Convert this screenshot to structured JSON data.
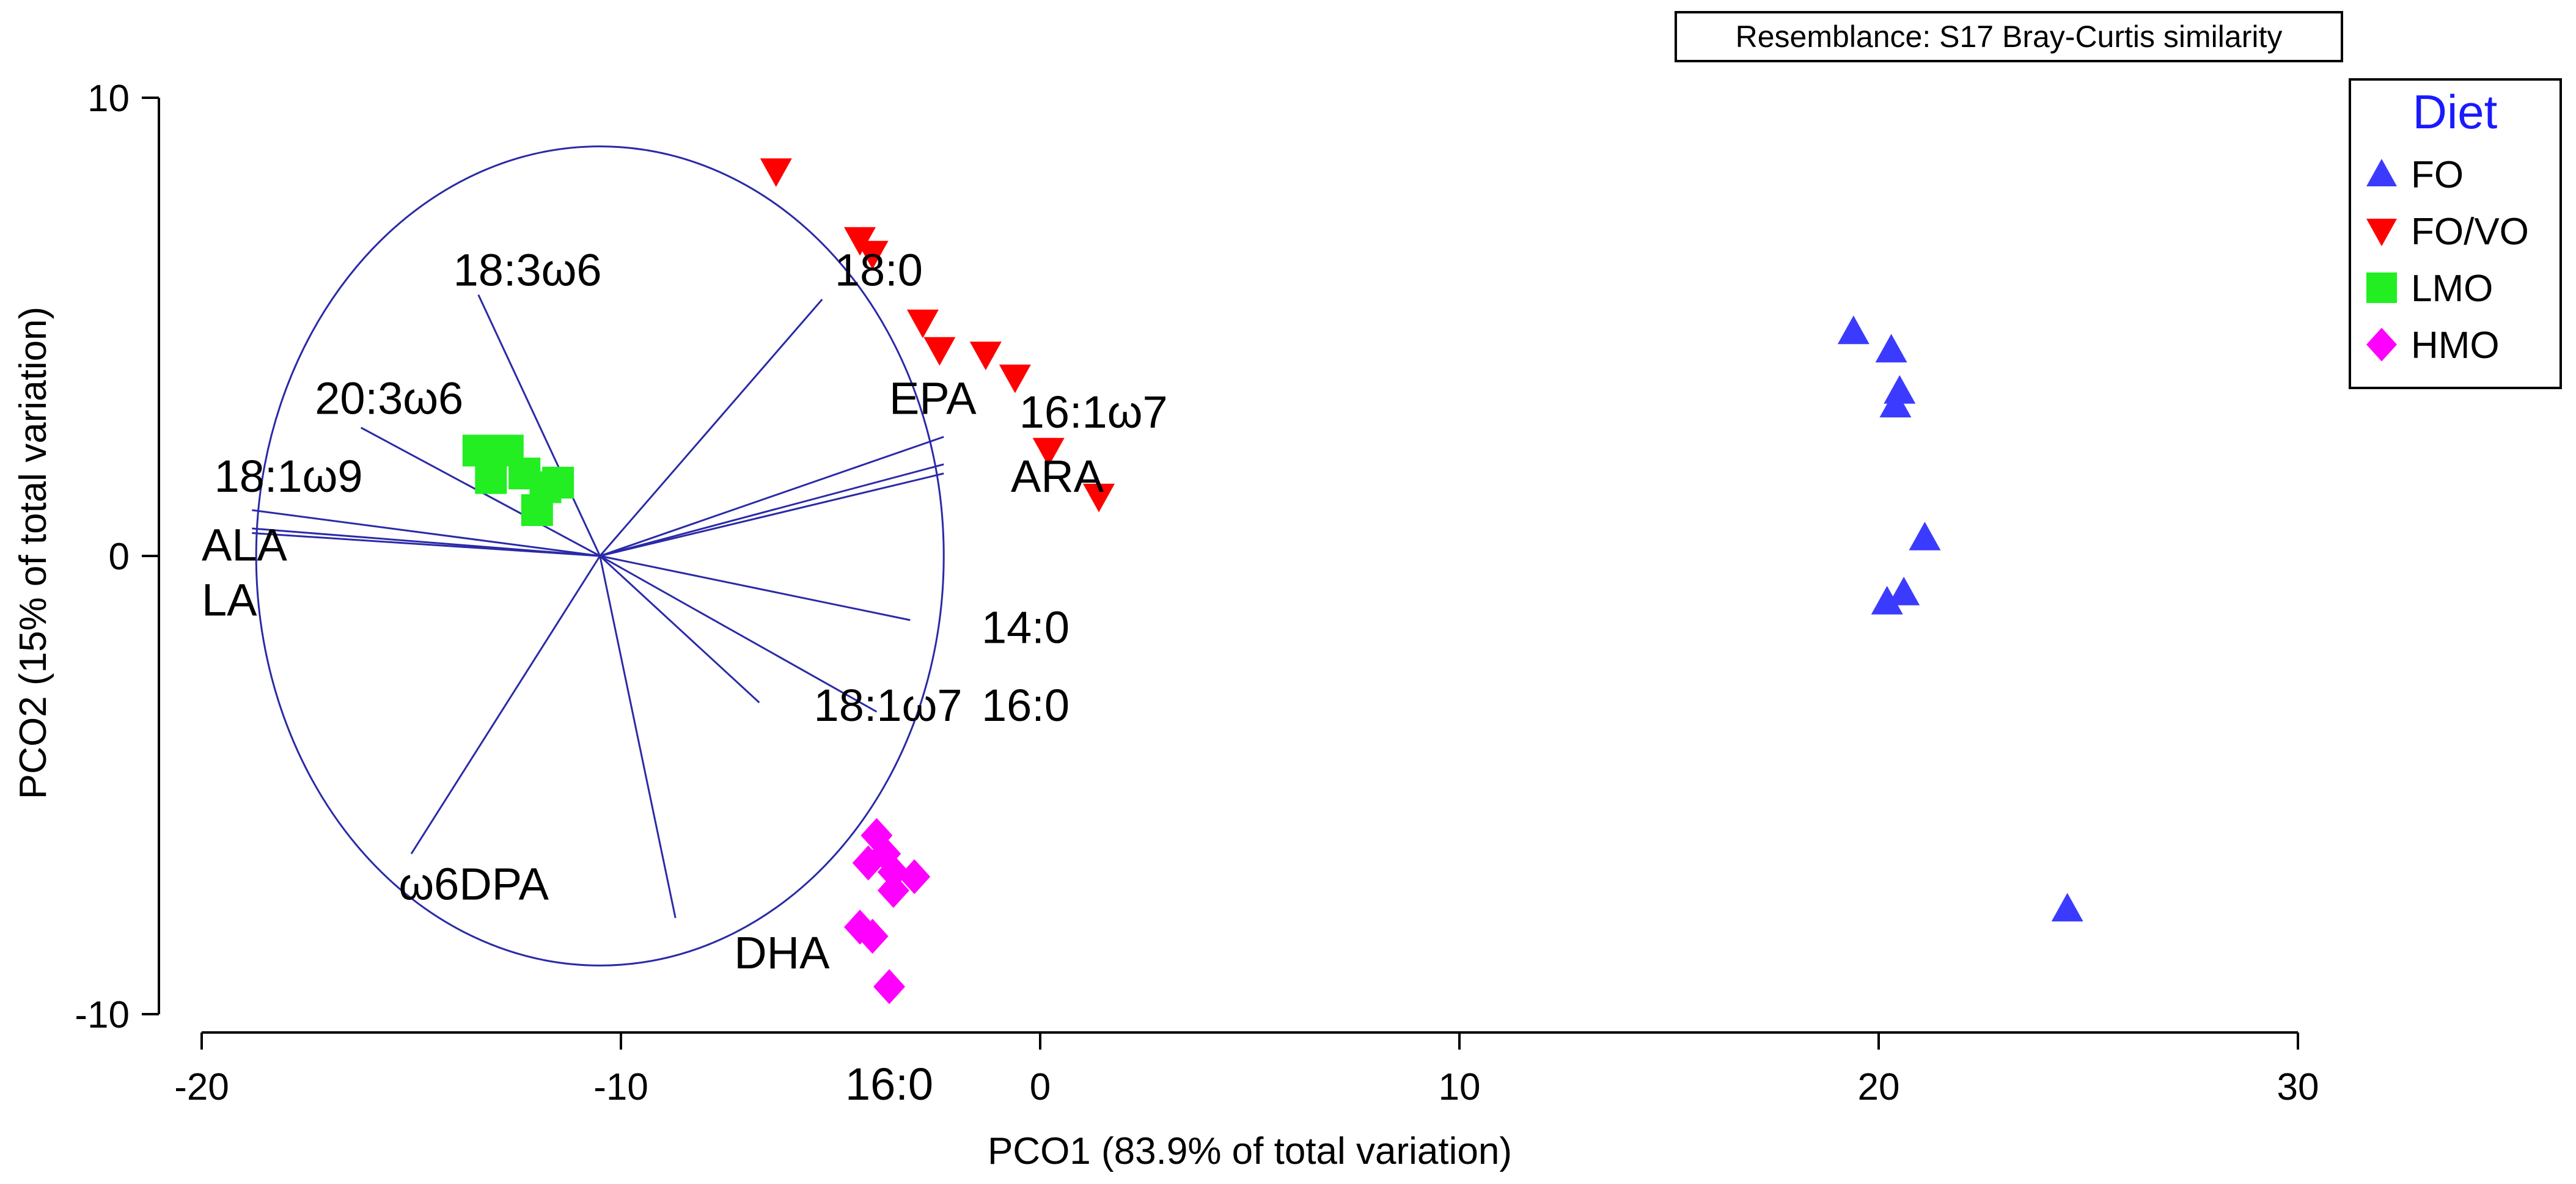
{
  "chart_data": {
    "type": "scatter",
    "title": "",
    "resemblance_note": "Resemblance: S17 Bray-Curtis similarity",
    "xlabel": "PCO1 (83.9% of total variation)",
    "ylabel": "PCO2 (15% of total variation)",
    "xlim": [
      -20,
      30
    ],
    "ylim": [
      -10,
      10
    ],
    "x_ticks": [
      -20,
      -10,
      0,
      10,
      20,
      30
    ],
    "x_tick_labels": [
      "-20",
      "-10",
      "0",
      "10",
      "20",
      "30"
    ],
    "y_ticks": [
      -10,
      0,
      10
    ],
    "y_tick_labels": [
      "-10",
      "0",
      "10"
    ],
    "stray_x_label": {
      "text": "16:0",
      "x": -3.6
    },
    "legend": {
      "title": "Diet",
      "position": "top-right",
      "entries": [
        {
          "label": "FO",
          "marker": "triangle-up",
          "color": "#3b3bff"
        },
        {
          "label": "FO/VO",
          "marker": "triangle-down",
          "color": "#ff0000"
        },
        {
          "label": "LMO",
          "marker": "square",
          "color": "#22ee22"
        },
        {
          "label": "HMO",
          "marker": "diamond",
          "color": "#ff00ff"
        }
      ]
    },
    "series": [
      {
        "name": "FO",
        "marker": "triangle-up",
        "color": "#3b3bff",
        "points": [
          [
            19.4,
            4.9
          ],
          [
            20.3,
            4.5
          ],
          [
            20.5,
            3.6
          ],
          [
            20.4,
            3.3
          ],
          [
            21.1,
            0.4
          ],
          [
            20.6,
            -0.8
          ],
          [
            20.2,
            -1.0
          ],
          [
            24.5,
            -7.7
          ]
        ]
      },
      {
        "name": "FO/VO",
        "marker": "triangle-down",
        "color": "#ff0000",
        "points": [
          [
            -6.3,
            8.4
          ],
          [
            -4.3,
            6.9
          ],
          [
            -4.0,
            6.6
          ],
          [
            -2.8,
            5.1
          ],
          [
            -2.4,
            4.5
          ],
          [
            -1.3,
            4.4
          ],
          [
            -0.6,
            3.9
          ],
          [
            0.2,
            2.3
          ],
          [
            1.4,
            1.3
          ]
        ]
      },
      {
        "name": "LMO",
        "marker": "square",
        "color": "#22ee22",
        "points": [
          [
            -13.4,
            2.3
          ],
          [
            -12.7,
            2.3
          ],
          [
            -13.1,
            1.7
          ],
          [
            -12.3,
            1.8
          ],
          [
            -11.8,
            1.5
          ],
          [
            -11.5,
            1.6
          ],
          [
            -12.0,
            1.0
          ]
        ]
      },
      {
        "name": "HMO",
        "marker": "diamond",
        "color": "#ff00ff",
        "points": [
          [
            -3.9,
            -6.1
          ],
          [
            -3.7,
            -6.5
          ],
          [
            -4.1,
            -6.7
          ],
          [
            -3.5,
            -6.9
          ],
          [
            -3.0,
            -7.0
          ],
          [
            -3.5,
            -7.3
          ],
          [
            -4.3,
            -8.1
          ],
          [
            -4.0,
            -8.3
          ],
          [
            -3.6,
            -9.4
          ]
        ]
      }
    ],
    "circle": {
      "center": [
        -10.5,
        0.0
      ],
      "radius": 8.2
    },
    "vectors": [
      {
        "label": "18:3ω6",
        "end": [
          -13.4,
          5.7
        ],
        "label_at": [
          -14.0,
          5.9
        ]
      },
      {
        "label": "18:0",
        "end": [
          -5.2,
          5.6
        ],
        "label_at": [
          -4.9,
          5.9
        ]
      },
      {
        "label": "20:3ω6",
        "end": [
          -16.2,
          2.8
        ],
        "label_at": [
          -17.3,
          3.1
        ]
      },
      {
        "label": "EPA",
        "end": [
          -2.3,
          2.6
        ],
        "label_at": [
          -3.6,
          3.1
        ]
      },
      {
        "label": "16:1ω7",
        "end": [
          -2.3,
          2.0
        ],
        "label_at": [
          -0.5,
          2.8
        ]
      },
      {
        "label": "ARA",
        "end": [
          -2.3,
          1.8
        ],
        "label_at": [
          -0.7,
          1.4
        ]
      },
      {
        "label": "18:1ω9",
        "end": [
          -18.8,
          1.0
        ],
        "label_at": [
          -19.7,
          1.4
        ]
      },
      {
        "label": "ALA",
        "end": [
          -18.8,
          0.6
        ],
        "label_at": [
          -20.0,
          -0.1
        ]
      },
      {
        "label": "LA",
        "end": [
          -18.8,
          0.5
        ],
        "label_at": [
          -20.0,
          -1.3
        ]
      },
      {
        "label": "14:0",
        "end": [
          -3.1,
          -1.4
        ],
        "label_at": [
          -1.4,
          -1.9
        ]
      },
      {
        "label": "18:1ω7",
        "end": [
          -6.7,
          -3.2
        ],
        "label_at": [
          -5.4,
          -3.6
        ]
      },
      {
        "label": "16:0",
        "end": [
          -3.9,
          -3.4
        ],
        "label_at": [
          -1.4,
          -3.6
        ]
      },
      {
        "label": "ω6DPA",
        "end": [
          -15.0,
          -6.5
        ],
        "label_at": [
          -15.3,
          -7.5
        ]
      },
      {
        "label": "DHA",
        "end": [
          -8.7,
          -7.9
        ],
        "label_at": [
          -7.3,
          -9.0
        ]
      }
    ]
  }
}
